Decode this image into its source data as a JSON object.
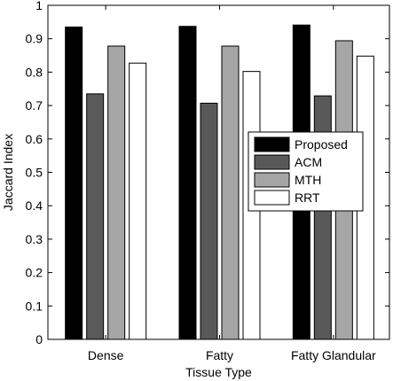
{
  "chart_data": {
    "type": "bar",
    "categories": [
      "Dense",
      "Fatty",
      "Fatty Glandular"
    ],
    "series": [
      {
        "name": "Proposed",
        "color": "#000000",
        "values": [
          0.935,
          0.937,
          0.941
        ]
      },
      {
        "name": "ACM",
        "color": "#595959",
        "values": [
          0.735,
          0.707,
          0.729
        ]
      },
      {
        "name": "MTH",
        "color": "#a6a6a6",
        "values": [
          0.878,
          0.878,
          0.894
        ]
      },
      {
        "name": "RRT",
        "color": "#ffffff",
        "values": [
          0.827,
          0.802,
          0.848
        ]
      }
    ],
    "xlabel": "Tissue Type",
    "ylabel": "Jaccard Index",
    "ylim": [
      0,
      1
    ],
    "yticks": [
      "0",
      "0.1",
      "0.2",
      "0.3",
      "0.4",
      "0.5",
      "0.6",
      "0.7",
      "0.8",
      "0.9",
      "1"
    ],
    "grid": false,
    "legend_position": "right-center"
  }
}
